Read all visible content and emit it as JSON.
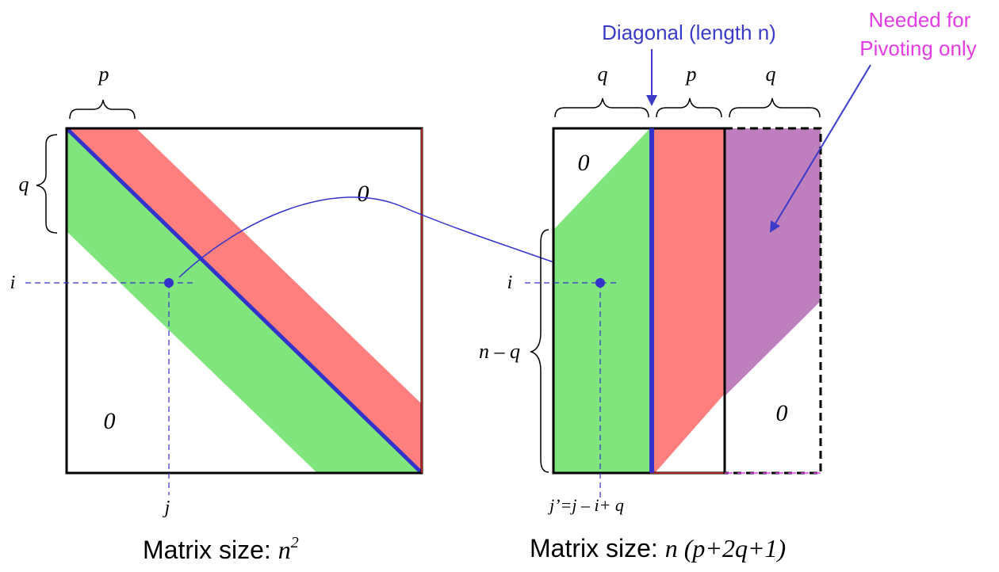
{
  "left_matrix": {
    "brace_top_label": "p",
    "brace_left_label": "q",
    "zero_upper": "0",
    "zero_lower": "0",
    "row_label": "i",
    "col_label": "j",
    "caption_prefix": "Matrix size: ",
    "caption_math": "n",
    "caption_sup": "2"
  },
  "right_matrix": {
    "brace_q_left": "q",
    "brace_p": "p",
    "brace_q_right": "q",
    "brace_nq": "n – q",
    "zero_upper": "0",
    "zero_lower": "0",
    "row_label": "i",
    "col_label": "j’=j – i+ q",
    "caption_prefix": "Matrix size: ",
    "caption_math": "n (p+2q+1)"
  },
  "annotations": {
    "diagonal": "Diagonal (length n)",
    "pivot_line1": "Needed for",
    "pivot_line2": "Pivoting only"
  },
  "colors": {
    "green": "#80e57c",
    "red": "#ff7f7f",
    "purple": "#bf7fbf",
    "blue": "#3333cc",
    "magenta": "#e23ce2",
    "annotation_blue": "#3b3bc8"
  }
}
